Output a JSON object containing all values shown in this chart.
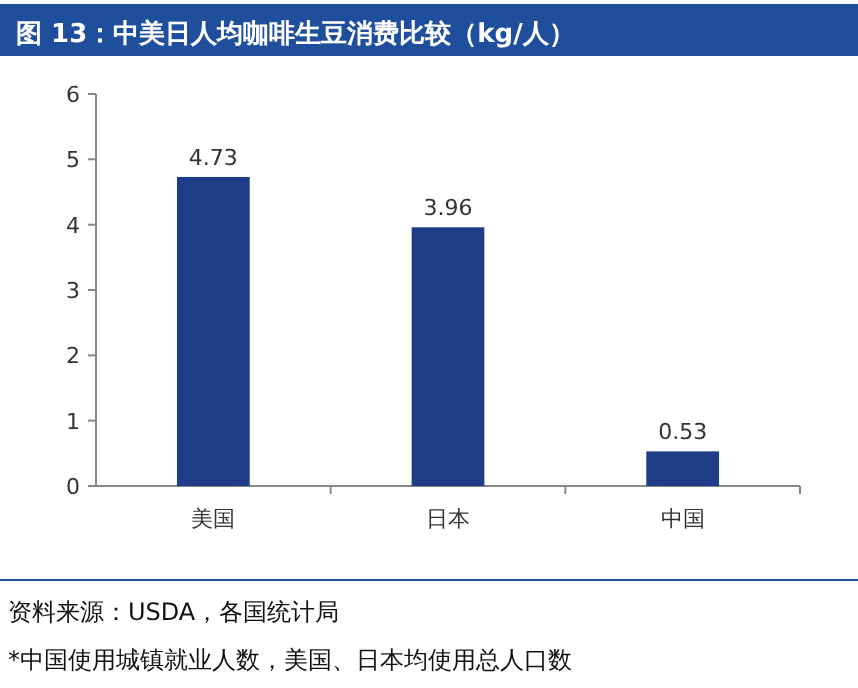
{
  "chart_data": {
    "type": "bar",
    "title": "图 13：中美日人均咖啡生豆消费比较（kg/人）",
    "categories": [
      "美国",
      "日本",
      "中国"
    ],
    "values": [
      4.73,
      3.96,
      0.53
    ],
    "color": "#1f3c88",
    "ylim": [
      0,
      6
    ],
    "yticks": [
      0,
      1,
      2,
      3,
      4,
      5,
      6
    ],
    "data_labels": true,
    "annotations": [
      "资料来源：USDA，各国统计局",
      "*中国使用城镇就业人数，美国、日本均使用总人口数"
    ]
  }
}
